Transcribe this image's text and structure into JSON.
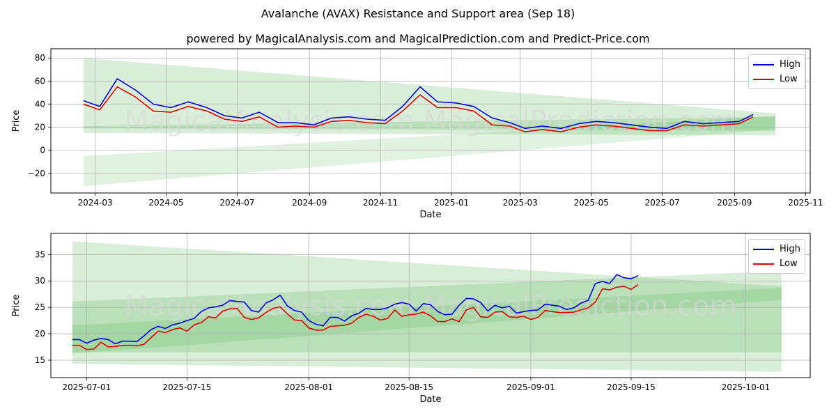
{
  "title": "Avalanche (AVAX) Resistance and Support area (Sep 18)",
  "subtitle": "powered by MagicalAnalysis.com and MagicalPrediction.com and Predict-Price.com",
  "watermark": "MagicalAnalysis.com    MagicalPrediction.com",
  "colors": {
    "high": "#0000dd",
    "low": "#dd0000",
    "band": "#2ca02c"
  },
  "chart_data": [
    {
      "type": "line",
      "xlabel": "Date",
      "ylabel": "Price",
      "x_ticks": [
        "2024-03",
        "2024-05",
        "2024-07",
        "2024-09",
        "2024-11",
        "2025-01",
        "2025-03",
        "2025-05",
        "2025-07",
        "2025-09",
        "2025-11"
      ],
      "y_ticks": [
        "−20",
        "0",
        "20",
        "40",
        "60",
        "80"
      ],
      "xlim": [
        "2024-01-23",
        "2025-11-05"
      ],
      "ylim": [
        -37,
        88
      ],
      "legend": [
        "High",
        "Low"
      ],
      "legend_position": "upper right",
      "grid": true,
      "x": [
        "2024-02-20",
        "2024-03-05",
        "2024-03-20",
        "2024-04-05",
        "2024-04-20",
        "2024-05-05",
        "2024-05-20",
        "2024-06-05",
        "2024-06-20",
        "2024-07-05",
        "2024-07-20",
        "2024-08-05",
        "2024-08-20",
        "2024-09-05",
        "2024-09-20",
        "2024-10-05",
        "2024-10-20",
        "2024-11-05",
        "2024-11-20",
        "2024-12-05",
        "2024-12-20",
        "2025-01-05",
        "2025-01-20",
        "2025-02-05",
        "2025-02-20",
        "2025-03-05",
        "2025-03-20",
        "2025-04-05",
        "2025-04-20",
        "2025-05-05",
        "2025-05-20",
        "2025-06-05",
        "2025-06-20",
        "2025-07-05",
        "2025-07-20",
        "2025-08-05",
        "2025-08-20",
        "2025-09-05",
        "2025-09-17"
      ],
      "series": [
        {
          "name": "High",
          "values": [
            43,
            38,
            62,
            52,
            40,
            37,
            42,
            37,
            30,
            28,
            33,
            24,
            24,
            22,
            28,
            29,
            27,
            26,
            38,
            55,
            42,
            41,
            38,
            28,
            24,
            19,
            21,
            19,
            23,
            25,
            24,
            22,
            20,
            19,
            25,
            23,
            24,
            25,
            31
          ]
        },
        {
          "name": "Low",
          "values": [
            40,
            35,
            55,
            46,
            34,
            33,
            38,
            34,
            27,
            25,
            29,
            20,
            21,
            20,
            25,
            26,
            24,
            23,
            34,
            48,
            37,
            37,
            34,
            22,
            21,
            16,
            18,
            16,
            20,
            22,
            21,
            19,
            17,
            17,
            22,
            21,
            22,
            23,
            29
          ]
        }
      ],
      "bands": [
        {
          "x": [
            "2024-02-20",
            "2025-10-06"
          ],
          "upper": [
            80,
            32
          ],
          "lower": [
            15,
            13
          ]
        },
        {
          "x": [
            "2024-02-20",
            "2025-10-06"
          ],
          "upper": [
            21,
            29
          ],
          "lower": [
            19,
            17
          ]
        },
        {
          "x": [
            "2024-02-20",
            "2025-10-06"
          ],
          "upper": [
            -5,
            30
          ],
          "lower": [
            -31,
            18
          ]
        }
      ]
    },
    {
      "type": "line",
      "xlabel": "Date",
      "ylabel": "Price",
      "x_ticks": [
        "2025-07-01",
        "2025-07-15",
        "2025-08-01",
        "2025-08-15",
        "2025-09-01",
        "2025-09-15",
        "2025-10-01"
      ],
      "y_ticks": [
        "15",
        "20",
        "25",
        "30",
        "35"
      ],
      "xlim": [
        "2025-06-26",
        "2025-10-10"
      ],
      "ylim": [
        11.7,
        39.0
      ],
      "legend": [
        "High",
        "Low"
      ],
      "legend_position": "upper right",
      "grid": true,
      "x": [
        "2025-06-29",
        "2025-06-30",
        "2025-07-01",
        "2025-07-02",
        "2025-07-03",
        "2025-07-04",
        "2025-07-05",
        "2025-07-06",
        "2025-07-07",
        "2025-07-08",
        "2025-07-09",
        "2025-07-10",
        "2025-07-11",
        "2025-07-12",
        "2025-07-13",
        "2025-07-14",
        "2025-07-15",
        "2025-07-16",
        "2025-07-17",
        "2025-07-18",
        "2025-07-19",
        "2025-07-20",
        "2025-07-21",
        "2025-07-22",
        "2025-07-23",
        "2025-07-24",
        "2025-07-25",
        "2025-07-26",
        "2025-07-27",
        "2025-07-28",
        "2025-07-29",
        "2025-07-30",
        "2025-07-31",
        "2025-08-01",
        "2025-08-02",
        "2025-08-03",
        "2025-08-04",
        "2025-08-05",
        "2025-08-06",
        "2025-08-07",
        "2025-08-08",
        "2025-08-09",
        "2025-08-10",
        "2025-08-11",
        "2025-08-12",
        "2025-08-13",
        "2025-08-14",
        "2025-08-15",
        "2025-08-16",
        "2025-08-17",
        "2025-08-18",
        "2025-08-19",
        "2025-08-20",
        "2025-08-21",
        "2025-08-22",
        "2025-08-23",
        "2025-08-24",
        "2025-08-25",
        "2025-08-26",
        "2025-08-27",
        "2025-08-28",
        "2025-08-29",
        "2025-08-30",
        "2025-08-31",
        "2025-09-01",
        "2025-09-02",
        "2025-09-03",
        "2025-09-04",
        "2025-09-05",
        "2025-09-06",
        "2025-09-07",
        "2025-09-08",
        "2025-09-09",
        "2025-09-10",
        "2025-09-11",
        "2025-09-12",
        "2025-09-13",
        "2025-09-14",
        "2025-09-15",
        "2025-09-16"
      ],
      "series": [
        {
          "name": "High",
          "values": [
            18.9,
            18.9,
            18.2,
            18.8,
            19.1,
            18.9,
            18.1,
            18.6,
            18.6,
            18.5,
            19.6,
            20.8,
            21.4,
            21.0,
            21.7,
            22.0,
            22.5,
            22.9,
            24.2,
            24.9,
            25.1,
            25.4,
            26.3,
            26.1,
            26.0,
            24.4,
            24.1,
            25.8,
            26.4,
            27.3,
            25.3,
            24.4,
            24.1,
            22.5,
            21.8,
            21.5,
            23.1,
            23.1,
            22.4,
            23.4,
            23.9,
            24.8,
            24.6,
            24.6,
            24.9,
            25.6,
            25.9,
            25.6,
            24.3,
            25.7,
            25.5,
            24.2,
            23.6,
            23.7,
            25.4,
            26.7,
            26.6,
            25.9,
            24.3,
            25.4,
            24.9,
            25.2,
            23.9,
            24.2,
            24.4,
            24.5,
            25.6,
            25.4,
            25.2,
            24.6,
            24.9,
            25.8,
            26.3,
            29.5,
            29.9,
            29.5,
            31.2,
            30.6,
            30.4,
            31.0
          ]
        },
        {
          "name": "Low",
          "values": [
            17.8,
            17.8,
            17.0,
            17.1,
            18.4,
            17.5,
            17.6,
            17.8,
            17.8,
            17.7,
            18.0,
            19.3,
            20.5,
            20.2,
            20.8,
            21.1,
            20.5,
            21.7,
            22.1,
            23.2,
            23.0,
            24.3,
            24.7,
            24.8,
            23.1,
            22.7,
            23.0,
            24.0,
            24.8,
            25.1,
            23.8,
            22.6,
            22.5,
            21.1,
            20.7,
            20.7,
            21.4,
            21.5,
            21.6,
            22.0,
            23.1,
            23.7,
            23.3,
            22.6,
            22.9,
            24.5,
            23.3,
            23.6,
            23.7,
            24.1,
            23.4,
            22.3,
            22.3,
            22.8,
            22.3,
            24.5,
            25.0,
            23.2,
            23.1,
            24.1,
            24.2,
            23.2,
            23.1,
            23.3,
            22.7,
            23.1,
            24.4,
            24.2,
            24.0,
            24.0,
            24.1,
            24.5,
            24.9,
            26.0,
            28.5,
            28.3,
            28.8,
            29.0,
            28.4,
            29.3
          ]
        }
      ],
      "bands": [
        {
          "x": [
            "2025-06-29",
            "2025-10-06"
          ],
          "upper": [
            37.5,
            29.0
          ],
          "lower": [
            14.3,
            12.8
          ]
        },
        {
          "x": [
            "2025-06-29",
            "2025-10-06"
          ],
          "upper": [
            26.1,
            31.9
          ],
          "lower": [
            16.5,
            16.5
          ]
        },
        {
          "x": [
            "2025-06-29",
            "2025-10-06"
          ],
          "upper": [
            21.6,
            28.7
          ],
          "lower": [
            16.2,
            26.4
          ]
        }
      ]
    }
  ]
}
